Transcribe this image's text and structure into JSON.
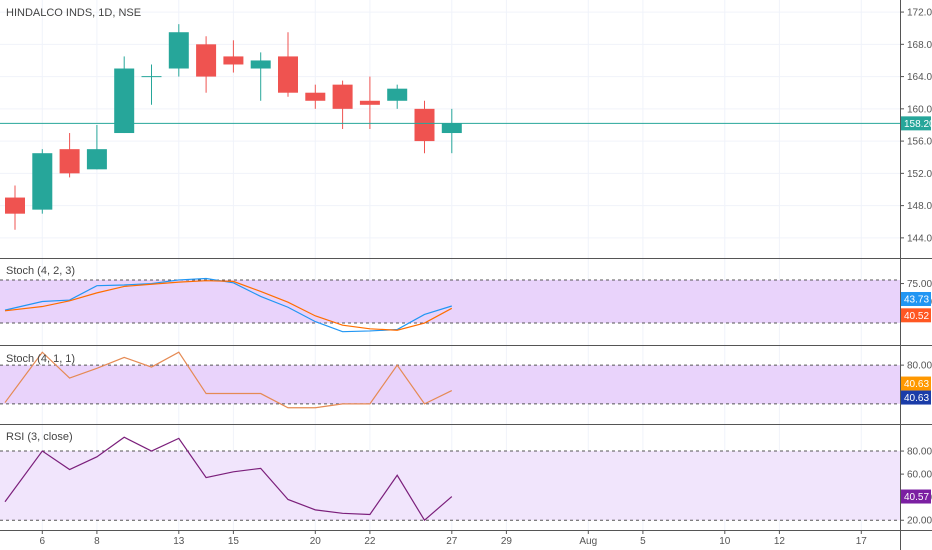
{
  "colors": {
    "up": "#26a69a",
    "down": "#ef5350",
    "grid": "#f0f3fa",
    "pane_border": "#555555",
    "band_fill": "#e9d3fb",
    "rsi_band_fill": "#f1e5fc",
    "stoch_k": "#2196f3",
    "stoch_d": "#ff6d00",
    "stoch_single": "#e58a54",
    "rsi_line": "#7b1f7b",
    "price_line": "#26a69a",
    "tag_k": "#2196f3",
    "tag_d": "#ff5722",
    "tag_orange": "#ff9800",
    "tag_navy": "#1a3ca8",
    "tag_rsi": "#7b1fa2"
  },
  "chart_data": [
    {
      "type": "candlestick",
      "title": "HINDALCO INDS, 1D, NSE",
      "ylim": [
        142,
        173
      ],
      "yticks": [
        "172.00",
        "168.00",
        "164.00",
        "160.00",
        "156.00",
        "152.00",
        "148.00",
        "144.00"
      ],
      "ytick_values": [
        172,
        168,
        164,
        160,
        156,
        152,
        148,
        144
      ],
      "last_price": 158.2,
      "last_price_label": "158.20",
      "bars": [
        {
          "day": "3",
          "open": 149.0,
          "high": 150.5,
          "low": 145.0,
          "close": 147.0
        },
        {
          "day": "6",
          "open": 147.5,
          "high": 155.0,
          "low": 147.0,
          "close": 154.5
        },
        {
          "day": "7",
          "open": 155.0,
          "high": 157.0,
          "low": 151.5,
          "close": 152.0
        },
        {
          "day": "8",
          "open": 152.5,
          "high": 158.0,
          "low": 152.5,
          "close": 155.0
        },
        {
          "day": "9",
          "open": 157.0,
          "high": 166.5,
          "low": 157.0,
          "close": 165.0
        },
        {
          "day": "10",
          "open": 164.0,
          "high": 165.5,
          "low": 160.5,
          "close": 164.0
        },
        {
          "day": "13",
          "open": 165.0,
          "high": 170.5,
          "low": 164.0,
          "close": 169.5
        },
        {
          "day": "14",
          "open": 168.0,
          "high": 169.0,
          "low": 162.0,
          "close": 164.0
        },
        {
          "day": "15",
          "open": 166.5,
          "high": 168.5,
          "low": 164.5,
          "close": 165.5
        },
        {
          "day": "16",
          "open": 165.0,
          "high": 167.0,
          "low": 161.0,
          "close": 166.0
        },
        {
          "day": "17",
          "open": 166.5,
          "high": 169.5,
          "low": 161.5,
          "close": 162.0
        },
        {
          "day": "20",
          "open": 162.0,
          "high": 163.0,
          "low": 160.0,
          "close": 161.0
        },
        {
          "day": "21",
          "open": 163.0,
          "high": 163.5,
          "low": 157.5,
          "close": 160.0
        },
        {
          "day": "22",
          "open": 161.0,
          "high": 164.0,
          "low": 157.5,
          "close": 160.5
        },
        {
          "day": "23",
          "open": 161.0,
          "high": 163.0,
          "low": 160.0,
          "close": 162.5
        },
        {
          "day": "24",
          "open": 160.0,
          "high": 161.0,
          "low": 154.5,
          "close": 156.0
        },
        {
          "day": "27",
          "open": 157.0,
          "high": 160.0,
          "low": 154.5,
          "close": 158.2
        }
      ]
    },
    {
      "type": "line",
      "title": "Stoch (4, 2, 3)",
      "ylim": [
        -5,
        105
      ],
      "band": [
        80,
        20
      ],
      "yticks": [
        "75.00",
        "50.00"
      ],
      "ytick_values": [
        75,
        50
      ],
      "series": [
        {
          "name": "K",
          "values": [
            38,
            50,
            52,
            72,
            73,
            75,
            80,
            82,
            76,
            57,
            42,
            22,
            8,
            9,
            11,
            32,
            43.73
          ]
        },
        {
          "name": "D",
          "values": [
            37,
            43,
            51,
            62,
            71,
            74,
            77,
            79,
            78,
            64,
            49,
            30,
            17,
            12,
            10,
            20,
            40.52
          ]
        }
      ],
      "tags": [
        "43.73",
        "40.52"
      ]
    },
    {
      "type": "line",
      "title": "Stoch (4, 1, 1)",
      "ylim": [
        -5,
        105
      ],
      "band": [
        80,
        20
      ],
      "yticks": [
        "80.00"
      ],
      "ytick_values": [
        80
      ],
      "series": [
        {
          "name": "",
          "values": [
            22,
            100,
            60,
            75,
            92,
            77,
            100,
            36,
            36,
            36,
            14,
            14,
            20,
            20,
            80,
            20,
            40.63
          ]
        }
      ],
      "tags": [
        "40.63",
        "40.63"
      ]
    },
    {
      "type": "line",
      "title": "RSI (3, close)",
      "ylim": [
        15,
        100
      ],
      "band": [
        80,
        20
      ],
      "yticks": [
        "80.00",
        "60.00",
        "40.00",
        "20.00"
      ],
      "ytick_values": [
        80,
        60,
        40,
        20
      ],
      "series": [
        {
          "name": "",
          "values": [
            36,
            80,
            64,
            75,
            92,
            80,
            91,
            57,
            62,
            65,
            38,
            29,
            26,
            25,
            59,
            20,
            40.57
          ]
        }
      ],
      "tags": [
        "40.57"
      ]
    }
  ],
  "x_axis": {
    "labels": [
      "6",
      "8",
      "13",
      "15",
      "20",
      "22",
      "27",
      "29",
      "Aug",
      "5",
      "10",
      "12",
      "17"
    ],
    "label_slots": [
      1,
      3,
      6,
      8,
      11,
      13,
      16,
      18,
      21,
      23,
      26,
      28,
      31
    ]
  }
}
